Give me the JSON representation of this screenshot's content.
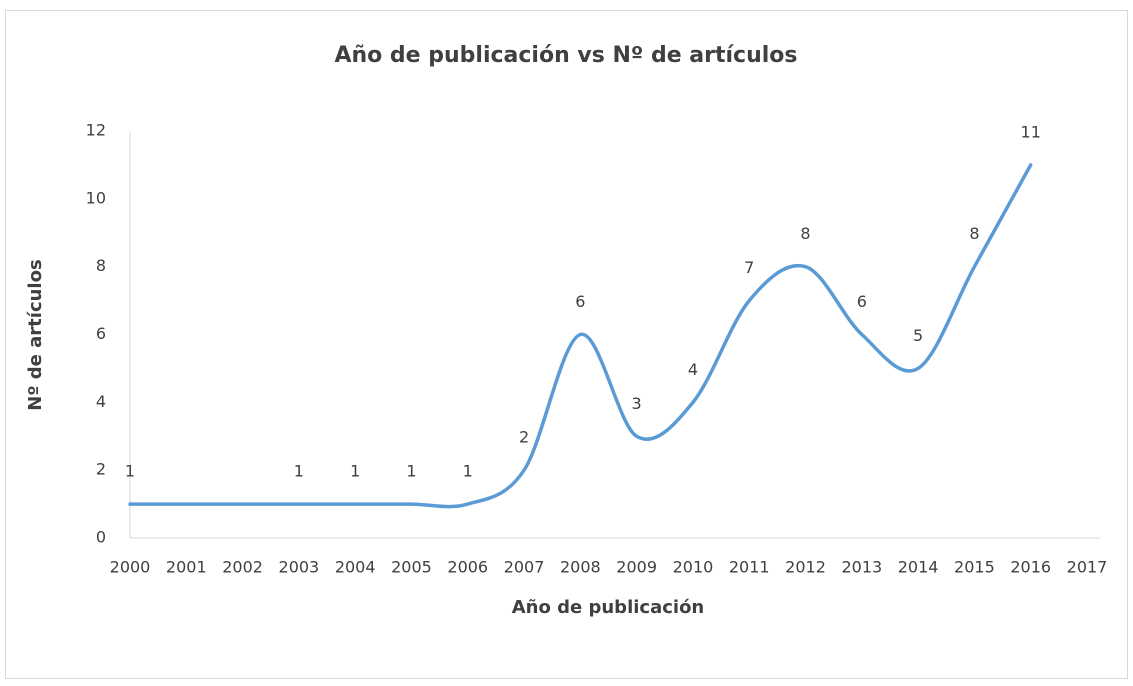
{
  "chart_data": {
    "type": "line",
    "title": "Año de publicación vs Nº de artículos",
    "xlabel": "Año de publicación",
    "ylabel": "Nº de artículos",
    "x": [
      2000,
      2003,
      2004,
      2005,
      2006,
      2007,
      2008,
      2009,
      2010,
      2011,
      2012,
      2013,
      2014,
      2015,
      2016
    ],
    "values": [
      1,
      1,
      1,
      1,
      1,
      2,
      6,
      3,
      4,
      7,
      8,
      6,
      5,
      8,
      11
    ],
    "color": "#5b9bd5",
    "smooth": true,
    "xlim": [
      2000,
      2017
    ],
    "xticks": [
      2000,
      2001,
      2002,
      2003,
      2004,
      2005,
      2006,
      2007,
      2008,
      2009,
      2010,
      2011,
      2012,
      2013,
      2014,
      2015,
      2016,
      2017
    ],
    "ylim": [
      0,
      12
    ],
    "yticks": [
      0,
      2,
      4,
      6,
      8,
      10,
      12
    ],
    "grid": false
  }
}
